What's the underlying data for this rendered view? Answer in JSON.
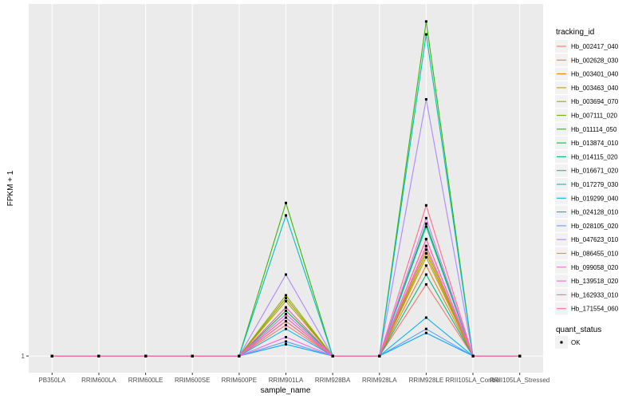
{
  "chart_data": {
    "type": "line",
    "xlabel": "sample_name",
    "ylabel": "FPKM + 1",
    "y_ticks": [
      1
    ],
    "y_scale": "log",
    "y_range_log10": [
      -0.07,
      1.48
    ],
    "grid": true,
    "legend_position": "right",
    "categories": [
      "PB350LA",
      "RRIM600LA",
      "RRIM600LE",
      "RRIM600SE",
      "RRIM600PE",
      "RRIM901LA",
      "RRIM928BA",
      "RRIM928LA",
      "RRIM928LE",
      "RRII105LA_Control",
      "RRII105LA_Stressed"
    ],
    "legend_color_title": "tracking_id",
    "legend_shape_title": "quant_status",
    "legend_shape_entries": [
      "OK"
    ],
    "series": [
      {
        "name": "Hb_002417_040",
        "color": "#F8766D",
        "values": [
          1,
          1,
          1,
          1,
          1,
          1.35,
          1,
          1,
          2.0,
          1,
          1
        ]
      },
      {
        "name": "Hb_002628_030",
        "color": "#EA8331",
        "values": [
          1,
          1,
          1,
          1,
          1,
          1.5,
          1,
          1,
          2.4,
          1,
          1
        ]
      },
      {
        "name": "Hb_003401_040",
        "color": "#D89000",
        "values": [
          1,
          1,
          1,
          1,
          1,
          1.6,
          1,
          1,
          2.8,
          1,
          1
        ]
      },
      {
        "name": "Hb_003463_040",
        "color": "#C09B00",
        "values": [
          1,
          1,
          1,
          1,
          1,
          1.7,
          1,
          1,
          2.6,
          1,
          1
        ]
      },
      {
        "name": "Hb_003694_070",
        "color": "#A3A500",
        "values": [
          1,
          1,
          1,
          1,
          1,
          1.8,
          1,
          1,
          2.7,
          1,
          1
        ]
      },
      {
        "name": "Hb_007111_020",
        "color": "#7CAE00",
        "values": [
          1,
          1,
          1,
          1,
          1,
          1.75,
          1,
          1,
          2.9,
          1,
          1
        ]
      },
      {
        "name": "Hb_011114_050",
        "color": "#39B600",
        "values": [
          1,
          1,
          1,
          1,
          1,
          4.4,
          1,
          1,
          25.5,
          1,
          1
        ]
      },
      {
        "name": "Hb_013874_010",
        "color": "#00BB4E",
        "values": [
          1,
          1,
          1,
          1,
          1,
          1.55,
          1,
          1,
          3.6,
          1,
          1
        ]
      },
      {
        "name": "Hb_014115_020",
        "color": "#00BF7D",
        "values": [
          1,
          1,
          1,
          1,
          1,
          1.4,
          1,
          1,
          2.2,
          1,
          1
        ]
      },
      {
        "name": "Hb_016671_020",
        "color": "#00C1A3",
        "values": [
          1,
          1,
          1,
          1,
          1,
          1.45,
          1,
          1,
          3.5,
          1,
          1
        ]
      },
      {
        "name": "Hb_017279_030",
        "color": "#00BFC4",
        "values": [
          1,
          1,
          1,
          1,
          1,
          3.9,
          1,
          1,
          22.5,
          1,
          1
        ]
      },
      {
        "name": "Hb_019299_040",
        "color": "#00B8E7",
        "values": [
          1,
          1,
          1,
          1,
          1,
          1.3,
          1,
          1,
          1.45,
          1,
          1
        ]
      },
      {
        "name": "Hb_024128_010",
        "color": "#00A9FF",
        "values": [
          1,
          1,
          1,
          1,
          1,
          1.12,
          1,
          1,
          1.25,
          1,
          1
        ]
      },
      {
        "name": "Hb_028105_020",
        "color": "#619CFF",
        "values": [
          1,
          1,
          1,
          1,
          1,
          1.15,
          1,
          1,
          1.3,
          1,
          1
        ]
      },
      {
        "name": "Hb_047623_010",
        "color": "#AE87FF",
        "values": [
          1,
          1,
          1,
          1,
          1,
          2.2,
          1,
          1,
          12.0,
          1,
          1
        ]
      },
      {
        "name": "Hb_086455_010",
        "color": "#DB72FB",
        "values": [
          1,
          1,
          1,
          1,
          1,
          1.5,
          1,
          1,
          3.8,
          1,
          1
        ]
      },
      {
        "name": "Hb_099058_020",
        "color": "#F564E3",
        "values": [
          1,
          1,
          1,
          1,
          1,
          1.2,
          1,
          1,
          2.9,
          1,
          1
        ]
      },
      {
        "name": "Hb_139518_020",
        "color": "#FF61C3",
        "values": [
          1,
          1,
          1,
          1,
          1,
          1.6,
          1,
          1,
          3.1,
          1,
          1
        ]
      },
      {
        "name": "Hb_162933_010",
        "color": "#FF6C91",
        "values": [
          1,
          1,
          1,
          1,
          1,
          1.4,
          1,
          1,
          4.3,
          1,
          1
        ]
      },
      {
        "name": "Hb_171554_060",
        "color": "#FF689F",
        "values": [
          1,
          1,
          1,
          1,
          1,
          1.45,
          1,
          1,
          3.1,
          1,
          1
        ]
      }
    ]
  }
}
